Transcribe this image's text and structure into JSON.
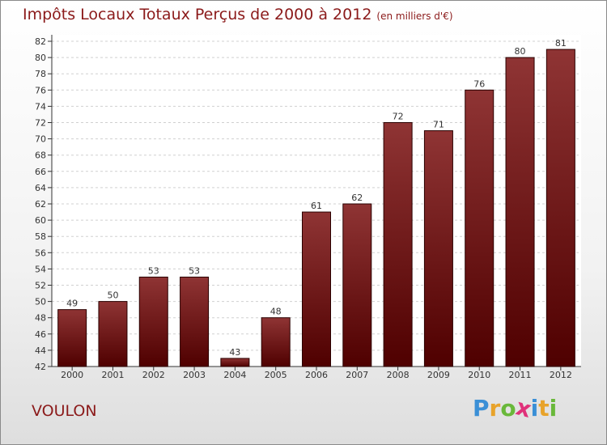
{
  "title": "Impôts Locaux Totaux Perçus de 2000 à 2012",
  "unit": "(en milliers d'€)",
  "commune": "VOULON",
  "logo": {
    "letters": [
      "P",
      "r",
      "o",
      "x",
      "i",
      "t",
      "i"
    ],
    "colors": [
      "#3a8fd6",
      "#e8a32a",
      "#69b83a",
      "#e0317a",
      "#3a8fd6",
      "#e8a32a",
      "#69b83a"
    ]
  },
  "colors": {
    "bar_top": "#8f3434",
    "bar_bottom": "#4f0000",
    "title": "#8b1a1a"
  },
  "chart_data": {
    "type": "bar",
    "categories": [
      "2000",
      "2001",
      "2002",
      "2003",
      "2004",
      "2005",
      "2006",
      "2007",
      "2008",
      "2009",
      "2010",
      "2011",
      "2012"
    ],
    "values": [
      49,
      50,
      53,
      53,
      43,
      48,
      61,
      62,
      72,
      71,
      76,
      80,
      81
    ],
    "ylim": [
      42,
      82
    ],
    "yticks": [
      42,
      44,
      46,
      48,
      50,
      52,
      54,
      56,
      58,
      60,
      62,
      64,
      66,
      68,
      70,
      72,
      74,
      76,
      78,
      80,
      82
    ],
    "grid": true,
    "data_labels": true
  }
}
